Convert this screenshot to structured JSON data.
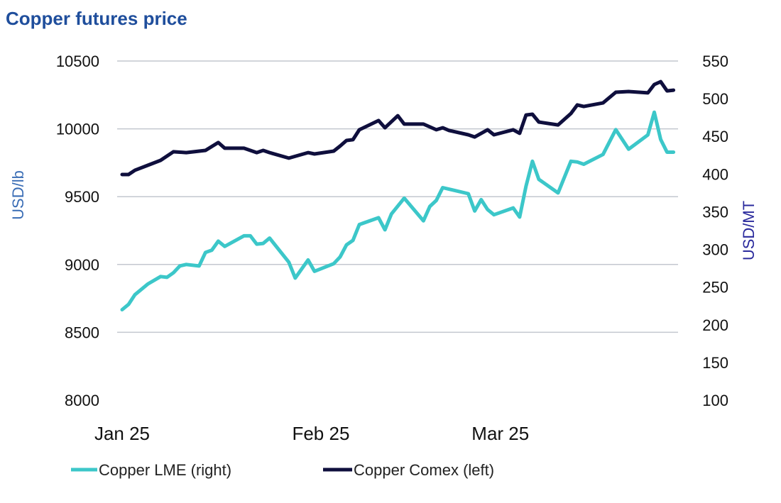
{
  "chart_data": {
    "type": "line",
    "title": "Copper futures price",
    "ylabel_left": "USD/lb",
    "ylabel_right": "USD/MT",
    "ylim_left": [
      8000,
      10500
    ],
    "ylim_right": [
      100,
      550
    ],
    "yticks_left": [
      "8000",
      "8500",
      "9000",
      "9500",
      "10000",
      "10500"
    ],
    "yticks_right": [
      "100",
      "150",
      "200",
      "250",
      "300",
      "350",
      "400",
      "450",
      "500",
      "550"
    ],
    "xticks": [
      {
        "label": "Jan 25",
        "date": "2025-01-01"
      },
      {
        "label": "Feb 25",
        "date": "2025-02-01"
      },
      {
        "label": "Mar 25",
        "date": "2025-03-01"
      }
    ],
    "grid": true,
    "legend_position": "bottom",
    "colors": {
      "lme": "#3cc7c9",
      "comex": "#0f0f3d",
      "title": "#1f4e9c",
      "grid": "#c3c7cf"
    },
    "series": [
      {
        "name": "Copper LME (right)",
        "axis": "right",
        "x": [
          "2025-01-01",
          "2025-01-02",
          "2025-01-03",
          "2025-01-05",
          "2025-01-07",
          "2025-01-08",
          "2025-01-09",
          "2025-01-10",
          "2025-01-11",
          "2025-01-13",
          "2025-01-14",
          "2025-01-15",
          "2025-01-16",
          "2025-01-17",
          "2025-01-20",
          "2025-01-21",
          "2025-01-22",
          "2025-01-23",
          "2025-01-24",
          "2025-01-27",
          "2025-01-28",
          "2025-01-30",
          "2025-01-31",
          "2025-02-03",
          "2025-02-04",
          "2025-02-05",
          "2025-02-06",
          "2025-02-07",
          "2025-02-10",
          "2025-02-11",
          "2025-02-12",
          "2025-02-14",
          "2025-02-17",
          "2025-02-18",
          "2025-02-19",
          "2025-02-20",
          "2025-02-24",
          "2025-02-25",
          "2025-02-26",
          "2025-02-27",
          "2025-02-28",
          "2025-03-03",
          "2025-03-04",
          "2025-03-05",
          "2025-03-06",
          "2025-03-07",
          "2025-03-10",
          "2025-03-12",
          "2025-03-13",
          "2025-03-14",
          "2025-03-17",
          "2025-03-19",
          "2025-03-21",
          "2025-03-24",
          "2025-03-25",
          "2025-03-26",
          "2025-03-27",
          "2025-03-28"
        ],
        "y": [
          220,
          227,
          240,
          254,
          264,
          263,
          269,
          278,
          280,
          278,
          296,
          299,
          311,
          304,
          318,
          318,
          307,
          308,
          315,
          283,
          262,
          286,
          271,
          281,
          290,
          306,
          312,
          333,
          342,
          326,
          347,
          368,
          338,
          357,
          365,
          382,
          374,
          351,
          366,
          353,
          346,
          355,
          343,
          384,
          417,
          393,
          375,
          417,
          416,
          413,
          426,
          459,
          433,
          452,
          482,
          446,
          429,
          429
        ]
      },
      {
        "name": "Copper Comex (left)",
        "axis": "left",
        "x": [
          "2025-01-01",
          "2025-01-02",
          "2025-01-03",
          "2025-01-05",
          "2025-01-07",
          "2025-01-09",
          "2025-01-11",
          "2025-01-14",
          "2025-01-16",
          "2025-01-17",
          "2025-01-20",
          "2025-01-22",
          "2025-01-23",
          "2025-01-24",
          "2025-01-27",
          "2025-01-30",
          "2025-01-31",
          "2025-02-03",
          "2025-02-04",
          "2025-02-05",
          "2025-02-06",
          "2025-02-07",
          "2025-02-10",
          "2025-02-11",
          "2025-02-13",
          "2025-02-14",
          "2025-02-17",
          "2025-02-19",
          "2025-02-20",
          "2025-02-21",
          "2025-02-24",
          "2025-02-25",
          "2025-02-27",
          "2025-02-28",
          "2025-03-03",
          "2025-03-04",
          "2025-03-05",
          "2025-03-06",
          "2025-03-07",
          "2025-03-10",
          "2025-03-12",
          "2025-03-13",
          "2025-03-14",
          "2025-03-17",
          "2025-03-19",
          "2025-03-21",
          "2025-03-24",
          "2025-03-25",
          "2025-03-26",
          "2025-03-27",
          "2025-03-28"
        ],
        "y": [
          9663,
          9663,
          9695,
          9731,
          9768,
          9831,
          9825,
          9841,
          9899,
          9857,
          9857,
          9825,
          9841,
          9825,
          9784,
          9825,
          9815,
          9836,
          9873,
          9914,
          9920,
          9993,
          10061,
          10008,
          10097,
          10035,
          10035,
          9993,
          10008,
          9988,
          9956,
          9940,
          9993,
          9956,
          9993,
          9967,
          10102,
          10108,
          10050,
          10029,
          10113,
          10176,
          10165,
          10191,
          10270,
          10275,
          10265,
          10327,
          10348,
          10280,
          10285
        ]
      }
    ]
  }
}
